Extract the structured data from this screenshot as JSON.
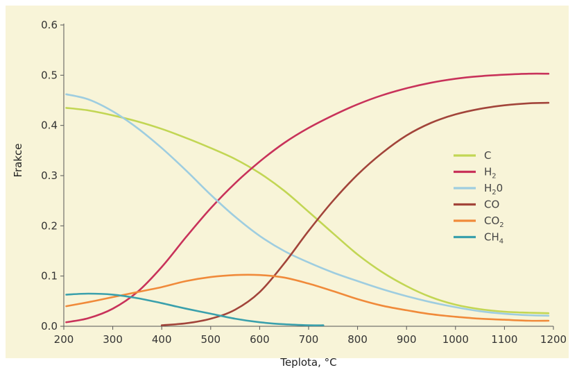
{
  "chart_data": {
    "type": "line",
    "xlabel": "Teplota, °C",
    "ylabel": "Frakce",
    "xlim": [
      200,
      1200
    ],
    "ylim": [
      0,
      0.6
    ],
    "xticks": [
      200,
      300,
      400,
      500,
      600,
      700,
      800,
      900,
      1000,
      1100,
      1200
    ],
    "yticks": [
      0.0,
      0.1,
      0.2,
      0.3,
      0.4,
      0.5,
      0.6
    ],
    "ytick_labels": [
      "0.0",
      "0.1",
      "0.2",
      "0.3",
      "0.4",
      "0.5",
      "0.6"
    ],
    "grid": false,
    "legend_position": "right",
    "plot_background": "#f8f4d8",
    "series": [
      {
        "name": "C",
        "label_main": "C",
        "label_sub": "",
        "label_tail": "",
        "color": "#c2d654",
        "x": [
          205,
          250,
          300,
          350,
          400,
          450,
          500,
          550,
          600,
          650,
          700,
          750,
          800,
          850,
          900,
          950,
          1000,
          1050,
          1100,
          1150,
          1190
        ],
        "y": [
          0.435,
          0.43,
          0.42,
          0.408,
          0.393,
          0.375,
          0.355,
          0.333,
          0.305,
          0.27,
          0.228,
          0.185,
          0.143,
          0.108,
          0.08,
          0.058,
          0.043,
          0.034,
          0.029,
          0.027,
          0.026
        ]
      },
      {
        "name": "H2",
        "label_main": "H",
        "label_sub": "2",
        "label_tail": "",
        "color": "#c8325a",
        "x": [
          205,
          250,
          300,
          350,
          400,
          450,
          500,
          550,
          600,
          650,
          700,
          750,
          800,
          850,
          900,
          950,
          1000,
          1050,
          1100,
          1150,
          1190
        ],
        "y": [
          0.008,
          0.016,
          0.035,
          0.068,
          0.118,
          0.178,
          0.235,
          0.285,
          0.328,
          0.365,
          0.395,
          0.42,
          0.442,
          0.46,
          0.474,
          0.485,
          0.493,
          0.498,
          0.501,
          0.503,
          0.503
        ]
      },
      {
        "name": "H20",
        "label_main": "H",
        "label_sub": "2",
        "label_tail": "0",
        "color": "#9ecde0",
        "x": [
          205,
          250,
          300,
          350,
          400,
          450,
          500,
          550,
          600,
          650,
          700,
          750,
          800,
          850,
          900,
          950,
          1000,
          1050,
          1100,
          1150,
          1190
        ],
        "y": [
          0.462,
          0.452,
          0.428,
          0.395,
          0.355,
          0.31,
          0.262,
          0.218,
          0.18,
          0.15,
          0.127,
          0.107,
          0.09,
          0.074,
          0.06,
          0.048,
          0.038,
          0.03,
          0.025,
          0.022,
          0.021
        ]
      },
      {
        "name": "CO",
        "label_main": "CO",
        "label_sub": "",
        "label_tail": "",
        "color": "#a2443a",
        "x": [
          400,
          450,
          500,
          550,
          600,
          650,
          700,
          750,
          800,
          850,
          900,
          950,
          1000,
          1050,
          1100,
          1150,
          1190
        ],
        "y": [
          0.002,
          0.006,
          0.015,
          0.033,
          0.068,
          0.125,
          0.19,
          0.25,
          0.302,
          0.345,
          0.38,
          0.405,
          0.422,
          0.433,
          0.44,
          0.444,
          0.445
        ]
      },
      {
        "name": "CO2",
        "label_main": "CO",
        "label_sub": "2",
        "label_tail": "",
        "color": "#f08a3a",
        "x": [
          205,
          250,
          300,
          350,
          400,
          450,
          500,
          550,
          600,
          650,
          700,
          750,
          800,
          850,
          900,
          950,
          1000,
          1050,
          1100,
          1150,
          1190
        ],
        "y": [
          0.04,
          0.048,
          0.058,
          0.068,
          0.078,
          0.09,
          0.098,
          0.102,
          0.102,
          0.097,
          0.085,
          0.07,
          0.054,
          0.041,
          0.032,
          0.024,
          0.019,
          0.015,
          0.013,
          0.011,
          0.011
        ]
      },
      {
        "name": "CH4",
        "label_main": "CH",
        "label_sub": "4",
        "label_tail": "",
        "color": "#3aa0ac",
        "x": [
          205,
          250,
          300,
          350,
          400,
          450,
          500,
          550,
          600,
          650,
          700,
          730
        ],
        "y": [
          0.063,
          0.065,
          0.063,
          0.056,
          0.046,
          0.035,
          0.025,
          0.015,
          0.008,
          0.004,
          0.002,
          0.002
        ]
      }
    ]
  }
}
